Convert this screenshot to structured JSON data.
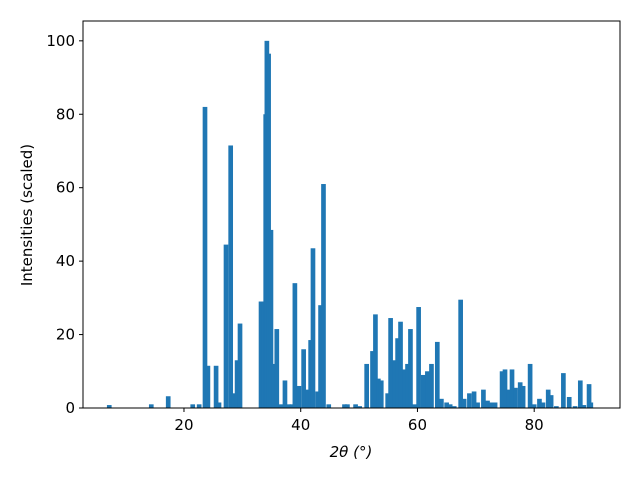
{
  "chart_data": {
    "type": "bar",
    "xlabel": "2θ (°)",
    "ylabel": "Intensities (scaled)",
    "color": "#1f77b4",
    "x": [
      7.2,
      14.4,
      17.3,
      21.5,
      22.6,
      23.6,
      24.1,
      25.5,
      26.0,
      27.2,
      28.0,
      28.5,
      29.1,
      29.6,
      33.2,
      33.7,
      34.0,
      34.2,
      34.5,
      34.9,
      35.4,
      35.9,
      36.6,
      37.3,
      37.9,
      38.5,
      39.0,
      39.7,
      40.5,
      41.2,
      41.7,
      42.1,
      42.9,
      43.4,
      43.9,
      44.8,
      47.5,
      48.0,
      49.4,
      50.1,
      51.3,
      52.3,
      52.8,
      53.3,
      53.8,
      54.9,
      55.4,
      56.1,
      56.6,
      57.1,
      57.8,
      58.3,
      58.8,
      59.5,
      60.2,
      61.0,
      61.7,
      62.4,
      63.4,
      64.1,
      65.0,
      65.6,
      66.3,
      67.4,
      68.0,
      68.9,
      69.7,
      70.3,
      71.3,
      72.0,
      72.6,
      73.3,
      74.5,
      75.0,
      75.6,
      76.2,
      76.8,
      77.6,
      78.1,
      79.3,
      80.0,
      80.9,
      81.5,
      82.4,
      82.9,
      83.8,
      85.0,
      86.0,
      87.0,
      87.9,
      88.5,
      89.4,
      89.7
    ],
    "values": [
      0.8,
      1,
      3.2,
      1,
      1,
      82,
      11.5,
      11.5,
      1.5,
      44.5,
      71.5,
      4,
      13,
      23,
      29,
      29,
      80,
      100,
      96.5,
      48.5,
      12,
      21.5,
      1,
      7.5,
      1,
      1,
      34,
      6,
      16,
      5,
      18.5,
      43.5,
      4.5,
      28,
      61,
      1,
      1,
      1,
      1,
      0.5,
      12,
      15.5,
      25.5,
      8,
      7.5,
      4,
      24.5,
      13,
      19,
      23.5,
      10.5,
      12,
      21.5,
      1,
      27.5,
      9,
      10,
      12,
      18,
      2.5,
      1.5,
      1,
      0.5,
      29.5,
      2.5,
      4,
      4.5,
      1.5,
      5,
      2,
      1.5,
      1.5,
      10,
      10.5,
      5,
      10.5,
      5.5,
      7,
      6,
      12,
      1,
      2.5,
      1.5,
      5,
      3.5,
      0.5,
      9.5,
      3,
      0.5,
      7.5,
      0.8,
      6.5,
      1.5
    ],
    "xlim": [
      2.7,
      94.7
    ],
    "ylim": [
      0,
      105.4
    ],
    "xticks": [
      20,
      40,
      60,
      80
    ],
    "yticks": [
      0,
      20,
      40,
      60,
      80,
      100
    ]
  }
}
